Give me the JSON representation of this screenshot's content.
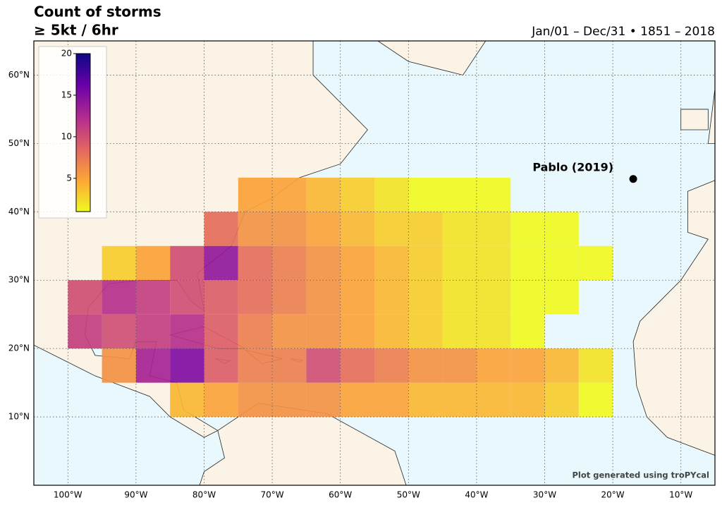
{
  "chart_data": {
    "type": "heatmap-map",
    "title": "Count of storms",
    "subtitle": "≥ 5kt / 6hr",
    "date_range": "Jan/01 – Dec/31 • 1851 – 2018",
    "credit": "Plot generated using troPYcal",
    "xlim": [
      -105,
      -5
    ],
    "ylim": [
      0,
      65
    ],
    "xticks": [
      {
        "value": -100,
        "label": "100°W"
      },
      {
        "value": -90,
        "label": "90°W"
      },
      {
        "value": -80,
        "label": "80°W"
      },
      {
        "value": -70,
        "label": "70°W"
      },
      {
        "value": -60,
        "label": "60°W"
      },
      {
        "value": -50,
        "label": "50°W"
      },
      {
        "value": -40,
        "label": "40°W"
      },
      {
        "value": -30,
        "label": "30°W"
      },
      {
        "value": -20,
        "label": "20°W"
      },
      {
        "value": -10,
        "label": "10°W"
      }
    ],
    "yticks": [
      {
        "value": 10,
        "label": "10°N"
      },
      {
        "value": 20,
        "label": "20°N"
      },
      {
        "value": 30,
        "label": "30°N"
      },
      {
        "value": 40,
        "label": "40°N"
      },
      {
        "value": 50,
        "label": "50°N"
      },
      {
        "value": 60,
        "label": "60°N"
      }
    ],
    "grid": true,
    "colormap": [
      "#f0f921",
      "#fca636",
      "#e16462",
      "#b12a90",
      "#6a00a8",
      "#0d0887"
    ],
    "clim": [
      1,
      20
    ],
    "cticks": [
      5,
      10,
      15,
      20
    ],
    "lon_edges": [
      -100,
      -95,
      -90,
      -85,
      -80,
      -75,
      -70,
      -65,
      -60,
      -55,
      -50,
      -45,
      -40,
      -35,
      -30,
      -25,
      -20,
      -15
    ],
    "lat_edges": [
      45,
      40,
      35,
      30,
      25,
      20,
      15,
      10
    ],
    "values": [
      [
        null,
        null,
        null,
        null,
        null,
        5,
        5,
        4,
        3,
        2,
        1,
        1,
        1,
        null,
        null,
        null,
        null
      ],
      [
        null,
        null,
        null,
        null,
        8,
        6,
        6,
        5,
        4,
        3,
        3,
        2,
        2,
        1,
        1,
        null,
        null
      ],
      [
        null,
        3,
        5,
        10,
        14,
        8,
        7,
        6,
        5,
        4,
        3,
        2,
        2,
        1,
        1,
        1,
        null
      ],
      [
        10,
        12,
        11,
        10,
        9,
        8,
        7,
        6,
        5,
        4,
        3,
        2,
        2,
        1,
        1,
        null,
        null
      ],
      [
        11,
        10,
        11,
        12,
        9,
        7,
        6,
        6,
        5,
        4,
        3,
        2,
        2,
        1,
        null,
        null,
        null
      ],
      [
        null,
        6,
        13,
        15,
        9,
        7,
        7,
        10,
        8,
        7,
        6,
        6,
        5,
        5,
        4,
        2,
        null
      ],
      [
        null,
        null,
        null,
        4,
        5,
        6,
        6,
        6,
        5,
        5,
        4,
        4,
        4,
        4,
        3,
        1,
        null
      ]
    ],
    "annotation": {
      "label": "Pablo (2019)",
      "lon": -17,
      "lat": 44.8
    }
  }
}
